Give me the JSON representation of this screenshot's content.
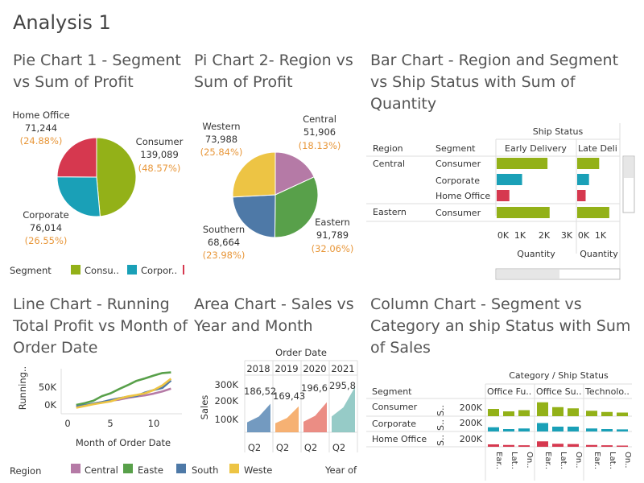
{
  "page": {
    "title": "Analysis 1"
  },
  "colors": {
    "consumer": "#93b118",
    "corporate": "#1aa0b7",
    "home_office": "#d6384f",
    "central": "#b57aa6",
    "eastern": "#58a04a",
    "southern": "#4e79a7",
    "western": "#edc444",
    "percent_text": "#e8973a"
  },
  "pie1": {
    "title": "Pie Chart 1 - Segment vs Sum of Profit",
    "legend_title": "Segment",
    "legend_items": [
      "Consu..",
      "Corpor.."
    ],
    "labels": [
      {
        "name": "Consumer",
        "value": "139,089",
        "pct": "(48.57%)"
      },
      {
        "name": "Corporate",
        "value": "76,014",
        "pct": "(26.55%)"
      },
      {
        "name": "Home Office",
        "value": "71,244",
        "pct": "(24.88%)"
      }
    ]
  },
  "pie2": {
    "title": "Pi Chart 2- Region vs Sum of Profit",
    "labels": [
      {
        "name": "Central",
        "value": "51,906",
        "pct": "(18.13%)"
      },
      {
        "name": "Eastern",
        "value": "91,789",
        "pct": "(32.06%)"
      },
      {
        "name": "Southern",
        "value": "68,664",
        "pct": "(23.98%)"
      },
      {
        "name": "Western",
        "value": "73,988",
        "pct": "(25.84%)"
      }
    ]
  },
  "bar": {
    "title": "Bar Chart - Region and Segment vs Ship Status with Sum of Quantity",
    "header_title": "Ship Status",
    "col_region": "Region",
    "col_segment": "Segment",
    "col_early": "Early Delivery",
    "col_late": "Late Deli",
    "rows": [
      {
        "region": "Central",
        "segment": "Consumer"
      },
      {
        "region": "",
        "segment": "Corporate"
      },
      {
        "region": "",
        "segment": "Home Office"
      },
      {
        "region": "Eastern",
        "segment": "Consumer"
      }
    ],
    "axis1_ticks": [
      "0K",
      "1K",
      "2K",
      "3K"
    ],
    "axis2_ticks": [
      "0K",
      "1K"
    ],
    "axis_label": "Quantity"
  },
  "line": {
    "title": "Line Chart - Running Total Profit vs Month of Order Date",
    "ylabel": "Running..",
    "xlabel": "Month of Order Date",
    "yticks": [
      "50K",
      "0K"
    ],
    "xticks": [
      "0",
      "5",
      "10"
    ],
    "legend_title": "Region",
    "legend_items": [
      "Central",
      "Easte",
      "South",
      "Weste"
    ]
  },
  "area": {
    "title": "Area Chart - Sales vs Year and Month",
    "header": "Order Date",
    "ylabel": "Sales",
    "yticks": [
      "300K",
      "200K",
      "100K"
    ],
    "years": [
      "2018",
      "2019",
      "2020",
      "2021"
    ],
    "values": [
      "186,52",
      "169,43",
      "196,6",
      "295,8"
    ],
    "q_label": "Q2",
    "footer_label": "Year of"
  },
  "column": {
    "title": "Column Chart - Segment vs Category an ship Status with Sum of Sales",
    "header": "Category / Ship Status",
    "col_segment": "Segment",
    "categories": [
      "Office Fu..",
      "Office Su..",
      "Technolo.."
    ],
    "rows": [
      "Consumer",
      "Corporate",
      "Home Office"
    ],
    "row_axis_label": "S..",
    "row_tick": "200K",
    "ship_status_ticks": [
      "Ear..",
      "Lat..",
      "On.."
    ]
  },
  "chart_data": [
    {
      "type": "pie",
      "title": "Pie Chart 1 - Segment vs Sum of Profit",
      "labels": [
        "Consumer",
        "Corporate",
        "Home Office"
      ],
      "values": [
        139089,
        76014,
        71244
      ],
      "percents": [
        48.57,
        26.55,
        24.88
      ],
      "legend": "bottom"
    },
    {
      "type": "pie",
      "title": "Pi Chart 2- Region vs Sum of Profit",
      "labels": [
        "Central",
        "Eastern",
        "Southern",
        "Western"
      ],
      "values": [
        51906,
        91789,
        68664,
        73988
      ],
      "percents": [
        18.13,
        32.06,
        23.98,
        25.84
      ]
    },
    {
      "type": "bar",
      "title": "Bar Chart - Region and Segment vs Ship Status with Sum of Quantity",
      "categories": [
        "Central / Consumer",
        "Central / Corporate",
        "Central / Home Office",
        "Eastern / Consumer"
      ],
      "series": [
        {
          "name": "Early Delivery",
          "values": [
            2400,
            1200,
            600,
            2500
          ]
        },
        {
          "name": "Late Delivery",
          "values": [
            1300,
            700,
            500,
            1900
          ]
        }
      ],
      "xlabel": "Quantity"
    },
    {
      "type": "line",
      "title": "Line Chart - Running Total Profit vs Month of Order Date",
      "x": [
        1,
        2,
        3,
        4,
        5,
        6,
        7,
        8,
        9,
        10,
        11,
        12
      ],
      "series": [
        {
          "name": "Central",
          "values": [
            -5,
            -2,
            3,
            8,
            12,
            15,
            20,
            24,
            27,
            32,
            38,
            46
          ]
        },
        {
          "name": "Eastern",
          "values": [
            0,
            5,
            12,
            25,
            33,
            45,
            56,
            68,
            75,
            83,
            90,
            92
          ]
        },
        {
          "name": "Southern",
          "values": [
            -4,
            -1,
            4,
            8,
            14,
            19,
            23,
            25,
            35,
            42,
            48,
            69
          ]
        },
        {
          "name": "Western",
          "values": [
            -8,
            -3,
            2,
            6,
            10,
            18,
            24,
            28,
            33,
            42,
            55,
            74
          ]
        }
      ],
      "xlabel": "Month of Order Date",
      "ylabel": "Running..",
      "ylim": [
        -15,
        100
      ],
      "xlim": [
        0,
        13
      ]
    },
    {
      "type": "area",
      "title": "Area Chart - Sales vs Year and Month",
      "categories": [
        "2018",
        "2019",
        "2020",
        "2021"
      ],
      "values": [
        186520,
        169430,
        196600,
        295800
      ],
      "ylabel": "Sales",
      "ylim": [
        0,
        330000
      ]
    },
    {
      "type": "bar",
      "title": "Column Chart - Segment vs Category an ship Status with Sum of Sales",
      "categories": [
        "Office Fu.. / Ear..",
        "Office Fu.. / Lat..",
        "Office Fu.. / On..",
        "Office Su.. / Ear..",
        "Office Su.. / Lat..",
        "Office Su.. / On..",
        "Technolo.. / Ear..",
        "Technolo.. / Lat..",
        "Technolo.. / On.."
      ],
      "series": [
        {
          "name": "Consumer",
          "values": [
            120000,
            80000,
            100000,
            230000,
            150000,
            130000,
            90000,
            70000,
            60000
          ]
        },
        {
          "name": "Corporate",
          "values": [
            70000,
            40000,
            50000,
            140000,
            80000,
            80000,
            50000,
            40000,
            35000
          ]
        },
        {
          "name": "Home Office",
          "values": [
            40000,
            30000,
            25000,
            90000,
            50000,
            45000,
            30000,
            25000,
            20000
          ]
        }
      ]
    }
  ]
}
